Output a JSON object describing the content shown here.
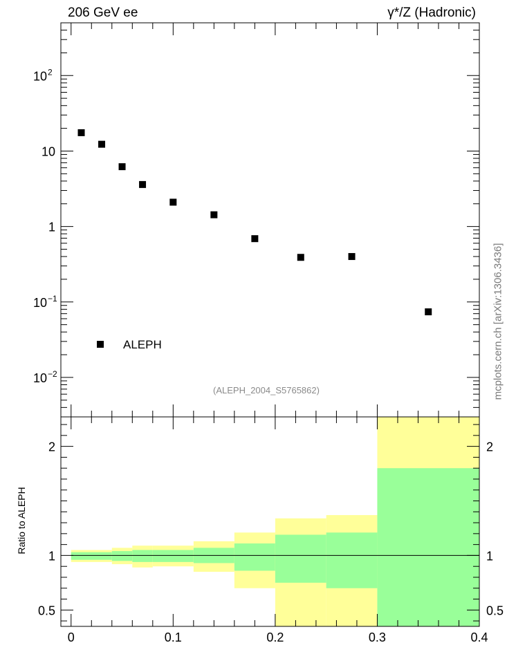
{
  "header": {
    "left_title": "206 GeV ee",
    "right_title": "γ*/Z (Hadronic)"
  },
  "side_credit": "mcplots.cern.ch [arXiv:1306.3436]",
  "analysis_id": "(ALEPH_2004_S5765862)",
  "colors": {
    "marker": "#000000",
    "band_outer": "#ffff99",
    "band_inner": "#99ff99",
    "analysis_text": "#8a8a8a",
    "credit_text": "#7a7a7a"
  },
  "chart_data": [
    {
      "type": "scatter",
      "name": "main-panel",
      "y_scale": "log",
      "xlim": [
        -0.01,
        0.4
      ],
      "ylim": [
        0.003,
        500
      ],
      "legend_position": "lower-left",
      "series": [
        {
          "name": "ALEPH",
          "marker": "square",
          "x": [
            0.01,
            0.03,
            0.05,
            0.07,
            0.1,
            0.14,
            0.18,
            0.225,
            0.275,
            0.35
          ],
          "y": [
            17.5,
            12.3,
            6.2,
            3.6,
            2.1,
            1.43,
            0.69,
            0.39,
            0.4,
            0.074
          ]
        }
      ],
      "y_ticks": [
        {
          "value": 0.01,
          "label": "10",
          "exp": "−2"
        },
        {
          "value": 0.1,
          "label": "10",
          "exp": "−1"
        },
        {
          "value": 1,
          "label": "1",
          "exp": ""
        },
        {
          "value": 10,
          "label": "10",
          "exp": ""
        },
        {
          "value": 100,
          "label": "10",
          "exp": "2"
        }
      ]
    },
    {
      "type": "area",
      "name": "ratio-panel",
      "ylabel": "Ratio to ALEPH",
      "xlim": [
        -0.01,
        0.4
      ],
      "ylim": [
        0.35,
        2.27
      ],
      "bin_edges": [
        0.0,
        0.04,
        0.06,
        0.08,
        0.12,
        0.16,
        0.2,
        0.25,
        0.3,
        0.4
      ],
      "outer_band": {
        "low": [
          0.94,
          0.92,
          0.89,
          0.9,
          0.85,
          0.7,
          0.35,
          0.35,
          0.35
        ],
        "high": [
          1.05,
          1.07,
          1.09,
          1.09,
          1.13,
          1.21,
          1.34,
          1.37,
          2.27
        ]
      },
      "inner_band": {
        "low": [
          0.96,
          0.95,
          0.94,
          0.94,
          0.93,
          0.86,
          0.75,
          0.7,
          0.35
        ],
        "high": [
          1.03,
          1.04,
          1.05,
          1.05,
          1.07,
          1.11,
          1.19,
          1.21,
          1.8
        ]
      },
      "reference_line": 1,
      "y_ticks": [
        0.5,
        1,
        2
      ],
      "y_tick_labels": [
        "0.5",
        "1",
        "2"
      ],
      "x_ticks": [
        0,
        0.1,
        0.2,
        0.3,
        0.4
      ],
      "x_tick_labels": [
        "0",
        "0.1",
        "0.2",
        "0.3",
        "0.4"
      ]
    }
  ]
}
